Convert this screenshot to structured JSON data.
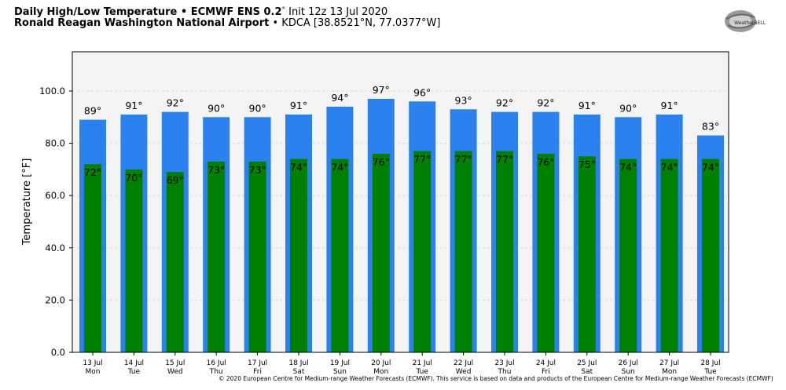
{
  "header": {
    "line1_bold": "Daily High/Low Temperature • ECMWF ENS 0.2",
    "line1_deg": "°",
    "line1_rest": " Init 12z 13 Jul 2020",
    "line2_bold": "Ronald Reagan Washington National Airport",
    "line2_rest": " • KDCA [38.8521°N, 77.0377°W]"
  },
  "logo": {
    "text": "WeatherBELL"
  },
  "credit": "© 2020 European Centre for Medium-range Weather Forecasts (ECMWF). This service is based on data and products of the European Centre for Medium-range Weather Forecasts (ECMWF)",
  "colors": {
    "high": "#2b82ee",
    "low": "#008000",
    "plot_bg": "#f4f4f4",
    "grid": "#d8d8d8"
  },
  "chart_data": {
    "type": "bar",
    "ylabel": "Temperature [°F]",
    "ylim": [
      0,
      115
    ],
    "yticks": [
      "0.0",
      "20.0",
      "40.0",
      "60.0",
      "80.0",
      "100.0"
    ],
    "grid": true,
    "categories": [
      [
        "13 Jul",
        "Mon"
      ],
      [
        "14 Jul",
        "Tue"
      ],
      [
        "15 Jul",
        "Wed"
      ],
      [
        "16 Jul",
        "Thu"
      ],
      [
        "17 Jul",
        "Fri"
      ],
      [
        "18 Jul",
        "Sat"
      ],
      [
        "19 Jul",
        "Sun"
      ],
      [
        "20 Jul",
        "Mon"
      ],
      [
        "21 Jul",
        "Tue"
      ],
      [
        "22 Jul",
        "Wed"
      ],
      [
        "23 Jul",
        "Thu"
      ],
      [
        "24 Jul",
        "Fri"
      ],
      [
        "25 Jul",
        "Sat"
      ],
      [
        "26 Jul",
        "Sun"
      ],
      [
        "27 Jul",
        "Mon"
      ],
      [
        "28 Jul",
        "Tue"
      ]
    ],
    "series": [
      {
        "values": [
          89,
          91,
          92,
          90,
          90,
          91,
          94,
          97,
          96,
          93,
          92,
          92,
          91,
          90,
          91,
          83
        ]
      },
      {
        "values": [
          72,
          70,
          69,
          73,
          73,
          74,
          74,
          76,
          77,
          77,
          77,
          76,
          75,
          74,
          74,
          74
        ]
      }
    ]
  }
}
